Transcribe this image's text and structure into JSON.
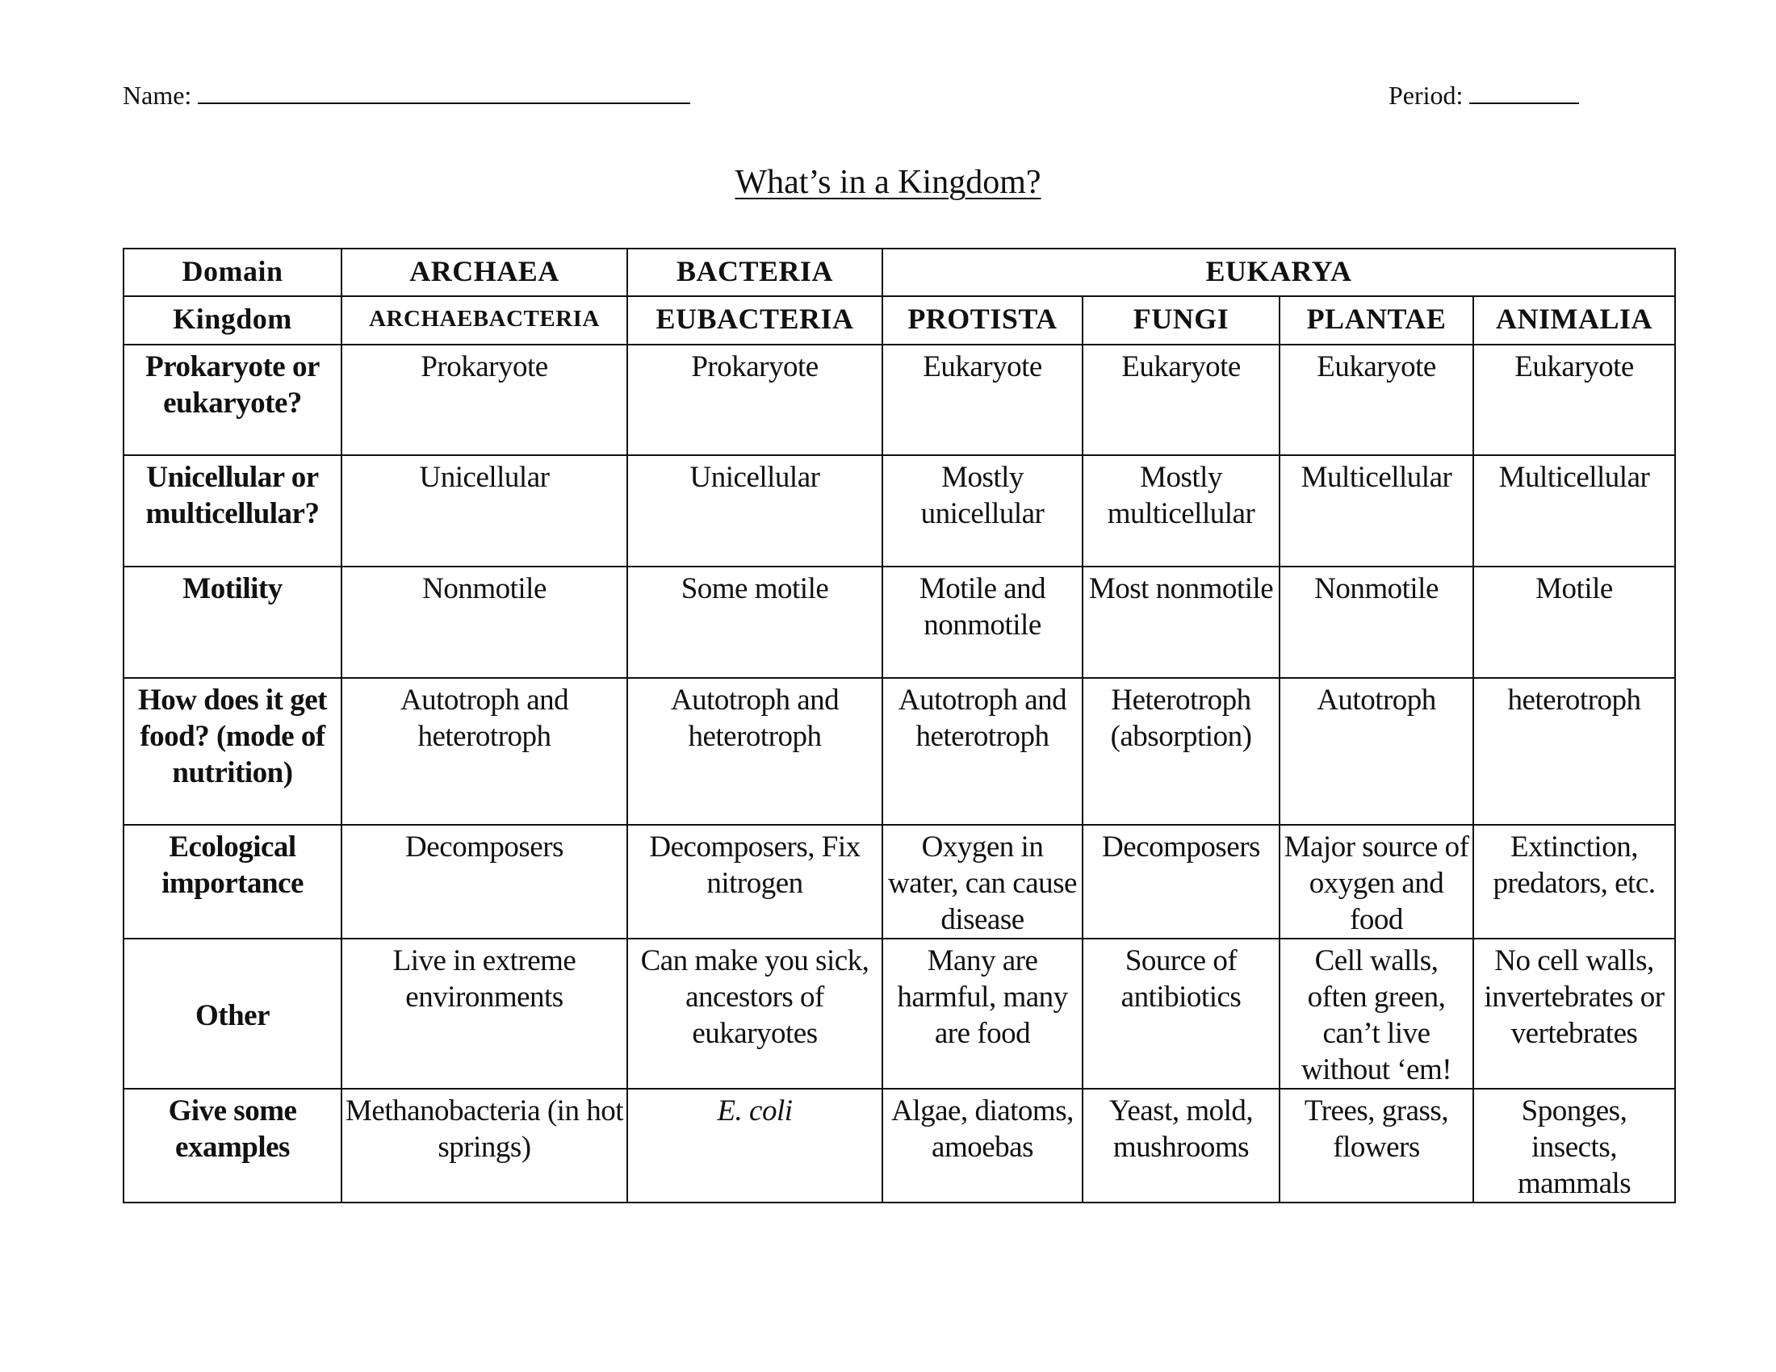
{
  "header": {
    "name_label": "Name:",
    "period_label": "Period:"
  },
  "title": "What’s in a Kingdom?",
  "table": {
    "domain_row": {
      "label": "Domain",
      "cells": [
        "ARCHAEA",
        "BACTERIA",
        "EUKARYA"
      ]
    },
    "kingdom_row": {
      "label": "Kingdom",
      "cells": [
        "ARCHAEBACTERIA",
        "EUBACTERIA",
        "PROTISTA",
        "FUNGI",
        "PLANTAE",
        "ANIMALIA"
      ]
    },
    "rows": [
      {
        "label": "Prokaryote or eukaryote?",
        "cells": [
          "Prokaryote",
          "Prokaryote",
          "Eukaryote",
          "Eukaryote",
          "Eukaryote",
          "Eukaryote"
        ]
      },
      {
        "label": "Unicellular or multicellular?",
        "cells": [
          "Unicellular",
          "Unicellular",
          "Mostly unicellular",
          "Mostly multicellular",
          "Multicellular",
          "Multicellular"
        ]
      },
      {
        "label": "Motility",
        "cells": [
          "Nonmotile",
          "Some motile",
          "Motile and nonmotile",
          "Most nonmotile",
          "Nonmotile",
          "Motile"
        ]
      },
      {
        "label": "How does it get food? (mode of nutrition)",
        "cells": [
          "Autotroph and heterotroph",
          "Autotroph and heterotroph",
          "Autotroph and heterotroph",
          "Heterotroph (absorption)",
          "Autotroph",
          "heterotroph"
        ]
      },
      {
        "label": "Ecological importance",
        "cells": [
          "Decomposers",
          "Decomposers, Fix nitrogen",
          "Oxygen in water, can cause disease",
          "Decomposers",
          "Major source of oxygen and food",
          "Extinction, predators, etc."
        ]
      },
      {
        "label": "Other",
        "cells": [
          "Live in extreme environments",
          "Can make you sick, ancestors of eukaryotes",
          "Many are harmful, many are food",
          "Source of antibiotics",
          "Cell walls, often green, can’t live without ‘em!",
          "No cell walls, invertebrates or vertebrates"
        ]
      },
      {
        "label": "Give some examples",
        "cells": [
          "Methanobacteria (in hot springs)",
          "E. coli",
          "Algae, diatoms, amoebas",
          "Yeast, mold, mushrooms",
          "Trees, grass, flowers",
          "Sponges, insects, mammals"
        ]
      }
    ]
  }
}
